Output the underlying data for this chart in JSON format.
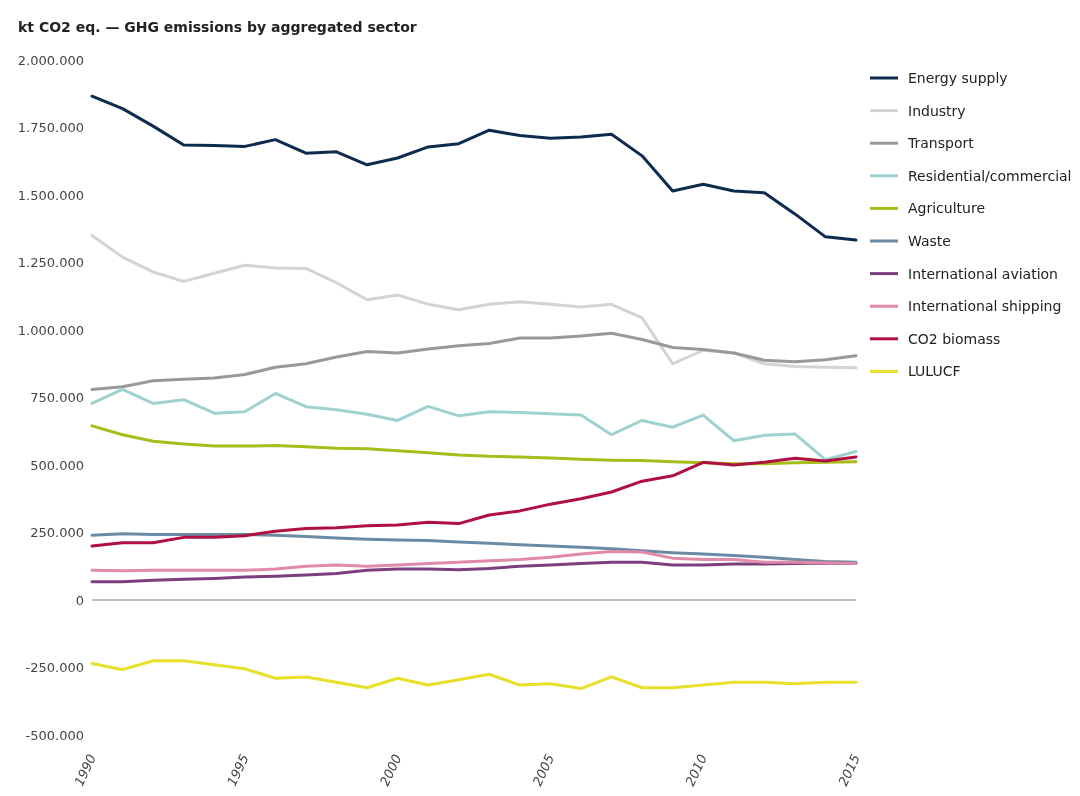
{
  "chart_data": {
    "type": "line",
    "title": "kt CO2 eq. — GHG emissions by aggregated sector",
    "x": [
      1990,
      1991,
      1992,
      1993,
      1994,
      1995,
      1996,
      1997,
      1998,
      1999,
      2000,
      2001,
      2002,
      2003,
      2004,
      2005,
      2006,
      2007,
      2008,
      2009,
      2010,
      2011,
      2012,
      2013,
      2014,
      2015
    ],
    "xlim": [
      1990,
      2015
    ],
    "xticks": [
      1990,
      1995,
      2000,
      2005,
      2010,
      2015
    ],
    "ylim": [
      -500000,
      2000000
    ],
    "yticks": [
      {
        "value": -500000,
        "label": "-500.000"
      },
      {
        "value": -250000,
        "label": "-250.000"
      },
      0,
      {
        "value": 250000,
        "label": "250.000"
      },
      {
        "value": 500000,
        "label": "500.000"
      },
      {
        "value": 750000,
        "label": "750.000"
      },
      {
        "value": 1000000,
        "label": "1.000.000"
      },
      {
        "value": 1250000,
        "label": "1.250.000"
      },
      {
        "value": 1500000,
        "label": "1.500.000"
      },
      {
        "value": 1750000,
        "label": "1.750.000"
      },
      {
        "value": 2000000,
        "label": "2.000.000"
      }
    ],
    "grid": false,
    "legend": "right",
    "line_style": "solid",
    "ref_lines": [
      {
        "axis": "y",
        "value": 0,
        "color": "#aaaaaa"
      }
    ],
    "series": [
      {
        "name": "Energy supply",
        "color": "#0d2b4e",
        "values": [
          1866000,
          1820000,
          1755000,
          1685000,
          1683000,
          1680000,
          1705000,
          1655000,
          1660000,
          1612000,
          1637000,
          1678000,
          1690000,
          1740000,
          1720000,
          1710000,
          1715000,
          1725000,
          1645000,
          1515000,
          1540000,
          1515000,
          1508000,
          1430000,
          1345000,
          1333000
        ]
      },
      {
        "name": "Industry",
        "color": "#d3d3d3",
        "values": [
          1350000,
          1270000,
          1215000,
          1180000,
          1210000,
          1240000,
          1230000,
          1228000,
          1175000,
          1112000,
          1130000,
          1095000,
          1075000,
          1095000,
          1105000,
          1095000,
          1085000,
          1095000,
          1045000,
          875000,
          925000,
          915000,
          875000,
          865000,
          862000,
          860000
        ]
      },
      {
        "name": "Transport",
        "color": "#999999",
        "values": [
          780000,
          790000,
          812000,
          818000,
          822000,
          835000,
          862000,
          875000,
          900000,
          920000,
          915000,
          930000,
          942000,
          950000,
          970000,
          970000,
          978000,
          988000,
          965000,
          935000,
          928000,
          915000,
          888000,
          882000,
          890000,
          905000
        ]
      },
      {
        "name": "Residential/commercial",
        "color": "#9fd1d1",
        "values": [
          728000,
          780000,
          728000,
          742000,
          692000,
          697000,
          765000,
          716000,
          705000,
          688000,
          665000,
          717000,
          682000,
          697000,
          694000,
          690000,
          685000,
          612000,
          665000,
          640000,
          685000,
          590000,
          610000,
          615000,
          520000,
          550000
        ]
      },
      {
        "name": "Agriculture",
        "color": "#a7bd1a",
        "values": [
          645000,
          612000,
          588000,
          578000,
          570000,
          570000,
          572000,
          568000,
          562000,
          560000,
          553000,
          545000,
          537000,
          532000,
          530000,
          526000,
          521000,
          518000,
          517000,
          512000,
          508000,
          505000,
          505000,
          508000,
          510000,
          512000
        ]
      },
      {
        "name": "Waste",
        "color": "#6b8ba4",
        "values": [
          240000,
          245000,
          243000,
          243000,
          243000,
          243000,
          240000,
          235000,
          230000,
          225000,
          222000,
          220000,
          215000,
          210000,
          205000,
          200000,
          195000,
          190000,
          182000,
          175000,
          170000,
          165000,
          158000,
          150000,
          143000,
          140000
        ]
      },
      {
        "name": "International aviation",
        "color": "#7b3f7f",
        "values": [
          68000,
          68000,
          73000,
          77000,
          80000,
          85000,
          88000,
          93000,
          98000,
          110000,
          115000,
          115000,
          112000,
          117000,
          125000,
          130000,
          135000,
          140000,
          140000,
          130000,
          130000,
          133000,
          133000,
          135000,
          137000,
          135000
        ]
      },
      {
        "name": "International shipping",
        "color": "#e08aa8",
        "values": [
          110000,
          108000,
          110000,
          110000,
          110000,
          110000,
          115000,
          125000,
          130000,
          125000,
          130000,
          135000,
          140000,
          145000,
          150000,
          158000,
          170000,
          180000,
          178000,
          155000,
          150000,
          150000,
          140000,
          140000,
          138000,
          135000
        ]
      },
      {
        "name": "CO2 biomass",
        "color": "#b0103f",
        "values": [
          200000,
          212000,
          212000,
          232000,
          232000,
          238000,
          255000,
          265000,
          268000,
          275000,
          278000,
          288000,
          283000,
          315000,
          330000,
          355000,
          375000,
          400000,
          440000,
          460000,
          510000,
          500000,
          510000,
          525000,
          515000,
          530000
        ]
      },
      {
        "name": "LULUCF",
        "color": "#e6e02a",
        "values": [
          -235000,
          -258000,
          -225000,
          -225000,
          -240000,
          -255000,
          -290000,
          -285000,
          -305000,
          -325000,
          -290000,
          -315000,
          -295000,
          -275000,
          -315000,
          -310000,
          -328000,
          -285000,
          -325000,
          -325000,
          -315000,
          -305000,
          -305000,
          -310000,
          -305000,
          -305000
        ]
      }
    ]
  }
}
